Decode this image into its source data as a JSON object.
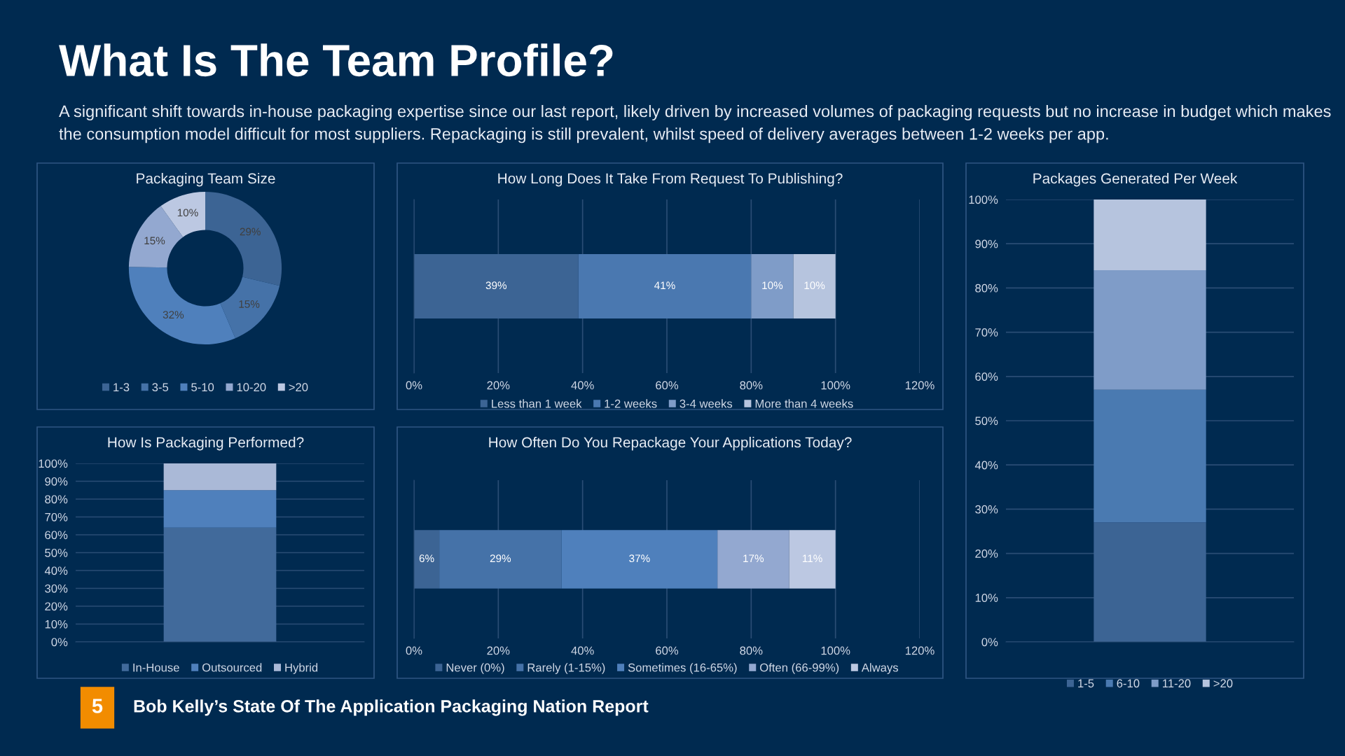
{
  "chart_data": [
    {
      "type": "other",
      "title": "What Is The Team Profile?",
      "subtitle": "A significant shift towards in-house packaging expertise since our last report, likely driven by increased volumes of packaging requests but no increase in budget which makes the consumption model difficult for most suppliers. Repackaging is still prevalent, whilst speed of delivery averages between 1-2 weeks per app.",
      "annotations": [
        "5",
        "Bob Kelly’s State Of The Application Packaging Nation Report"
      ]
    },
    {
      "type": "donut",
      "title": "Packaging Team Size",
      "categories": [
        "1-3",
        "3-5",
        "5-10",
        "10-20",
        ">20"
      ],
      "values": [
        29,
        15,
        32,
        15,
        10
      ],
      "colors": [
        "#3c6494",
        "#4572a8",
        "#4f80bc",
        "#93a8d0",
        "#bcc8e2"
      ],
      "value_labels": [
        "29%",
        "15%",
        "32%",
        "15%",
        "10%"
      ],
      "legend": "bottom"
    },
    {
      "type": "bar",
      "title": "How Long Does It Take From Request To Publishing?",
      "orientation": "horizontal",
      "stacked": true,
      "categories": [
        null
      ],
      "series": [
        {
          "name": "Less than 1 week",
          "color": "#3c6494",
          "values": [
            39
          ],
          "value_labels": [
            "39%"
          ]
        },
        {
          "name": "1-2 weeks",
          "color": "#4a78b0",
          "values": [
            41
          ],
          "value_labels": [
            "41%"
          ]
        },
        {
          "name": "3-4 weeks",
          "color": "#7f9cc8",
          "values": [
            10
          ],
          "value_labels": [
            "10%"
          ]
        },
        {
          "name": "More than 4 weeks",
          "color": "#b6c4de",
          "values": [
            10
          ],
          "value_labels": [
            "10%"
          ]
        }
      ],
      "xlim": [
        0,
        120
      ],
      "xticks": [
        {
          "value": 0,
          "label": "0%"
        },
        {
          "value": 20,
          "label": "20%"
        },
        {
          "value": 40,
          "label": "40%"
        },
        {
          "value": 60,
          "label": "60%"
        },
        {
          "value": 80,
          "label": "80%"
        },
        {
          "value": 100,
          "label": "100%"
        },
        {
          "value": 120,
          "label": "120%"
        }
      ],
      "grid": "x",
      "legend": "bottom"
    },
    {
      "type": "bar",
      "title": "Packages Generated Per Week",
      "stacked": true,
      "categories": [
        null
      ],
      "series": [
        {
          "name": "1-5",
          "color": "#3c6494",
          "values": [
            27
          ]
        },
        {
          "name": "6-10",
          "color": "#4a7ab1",
          "values": [
            30
          ]
        },
        {
          "name": "11-20",
          "color": "#7f9cc8",
          "values": [
            27
          ]
        },
        {
          "name": ">20",
          "color": "#b6c4de",
          "values": [
            16
          ]
        }
      ],
      "ylim": [
        0,
        100
      ],
      "yticks": [
        {
          "value": 0,
          "label": "0%"
        },
        {
          "value": 10,
          "label": "10%"
        },
        {
          "value": 20,
          "label": "20%"
        },
        {
          "value": 30,
          "label": "30%"
        },
        {
          "value": 40,
          "label": "40%"
        },
        {
          "value": 50,
          "label": "50%"
        },
        {
          "value": 60,
          "label": "60%"
        },
        {
          "value": 70,
          "label": "70%"
        },
        {
          "value": 80,
          "label": "80%"
        },
        {
          "value": 90,
          "label": "90%"
        },
        {
          "value": 100,
          "label": "100%"
        }
      ],
      "grid": "y",
      "legend": "bottom"
    },
    {
      "type": "bar",
      "title": "How Is Packaging Performed?",
      "stacked": true,
      "categories": [
        null
      ],
      "series": [
        {
          "name": "In-House",
          "color": "#416a9b",
          "values": [
            64
          ]
        },
        {
          "name": "Outsourced",
          "color": "#4f80bc",
          "values": [
            21
          ]
        },
        {
          "name": "Hybrid",
          "color": "#aab9d7",
          "values": [
            15
          ]
        }
      ],
      "ylim": [
        0,
        100
      ],
      "yticks": [
        {
          "value": 0,
          "label": "0%"
        },
        {
          "value": 10,
          "label": "10%"
        },
        {
          "value": 20,
          "label": "20%"
        },
        {
          "value": 30,
          "label": "30%"
        },
        {
          "value": 40,
          "label": "40%"
        },
        {
          "value": 50,
          "label": "50%"
        },
        {
          "value": 60,
          "label": "60%"
        },
        {
          "value": 70,
          "label": "70%"
        },
        {
          "value": 80,
          "label": "80%"
        },
        {
          "value": 90,
          "label": "90%"
        },
        {
          "value": 100,
          "label": "100%"
        }
      ],
      "grid": "y",
      "legend": "bottom"
    },
    {
      "type": "bar",
      "title": "How Often Do You Repackage Your Applications Today?",
      "orientation": "horizontal",
      "stacked": true,
      "categories": [
        null
      ],
      "series": [
        {
          "name": "Never (0%)",
          "color": "#3c6494",
          "values": [
            6
          ],
          "value_labels": [
            "6%"
          ]
        },
        {
          "name": "Rarely (1-15%)",
          "color": "#4572a8",
          "values": [
            29
          ],
          "value_labels": [
            "29%"
          ]
        },
        {
          "name": "Sometimes (16-65%)",
          "color": "#4f80bc",
          "values": [
            37
          ],
          "value_labels": [
            "37%"
          ]
        },
        {
          "name": "Often (66-99%)",
          "color": "#93a8d0",
          "values": [
            17
          ],
          "value_labels": [
            "17%"
          ]
        },
        {
          "name": "Always",
          "color": "#bcc8e2",
          "values": [
            11
          ],
          "value_labels": [
            "11%"
          ]
        }
      ],
      "xlim": [
        0,
        120
      ],
      "xticks": [
        {
          "value": 0,
          "label": "0%"
        },
        {
          "value": 20,
          "label": "20%"
        },
        {
          "value": 40,
          "label": "40%"
        },
        {
          "value": 60,
          "label": "60%"
        },
        {
          "value": 80,
          "label": "80%"
        },
        {
          "value": 100,
          "label": "100%"
        },
        {
          "value": 120,
          "label": "120%"
        }
      ],
      "grid": "x",
      "legend": "bottom"
    }
  ]
}
